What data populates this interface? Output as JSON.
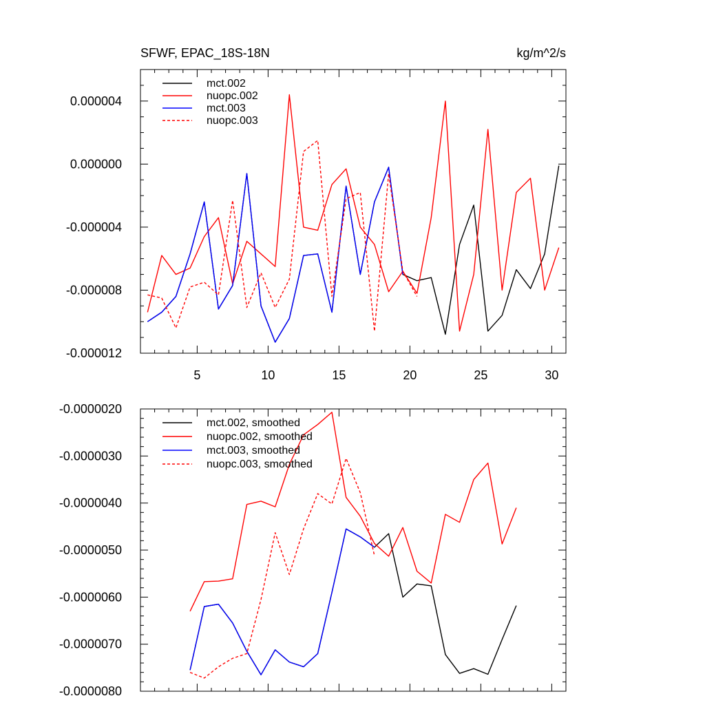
{
  "chart_data": [
    {
      "type": "line",
      "title": "SFWF, EPAC_18S-18N",
      "units": "kg/m^2/s",
      "xlabel": "",
      "ylabel": "",
      "xlim": [
        1,
        31
      ],
      "ylim": [
        -1.2e-05,
        6e-06
      ],
      "x_ticks": [
        5,
        10,
        15,
        20,
        25,
        30
      ],
      "x_tick_labels": [
        "5",
        "10",
        "15",
        "20",
        "25",
        "30"
      ],
      "y_ticks": [
        4e-06,
        0.0,
        -4e-06,
        -8e-06,
        -1.2e-05
      ],
      "y_tick_labels": [
        "0.000004",
        "0.000000",
        "-0.000004",
        "-0.000008",
        "-0.000012"
      ],
      "x_minor_step": 1,
      "y_minor_step": 1e-06,
      "legend_position": "top-left",
      "series": [
        {
          "name": "mct.002",
          "color": "#000000",
          "dash": "solid",
          "x": [
            1.5,
            2.5,
            3.5,
            4.5,
            5.5,
            6.5,
            7.5,
            8.5,
            9.5,
            10.5,
            11.5,
            12.5,
            13.5,
            14.5,
            15.5,
            16.5,
            17.5,
            18.5,
            19.5,
            20.5,
            21.5,
            22.5,
            23.5,
            24.5,
            25.5,
            26.5,
            27.5,
            28.5,
            29.5,
            30.5
          ],
          "values": [
            -1e-05,
            -9.4e-06,
            -8.4e-06,
            -5.7e-06,
            -2.4e-06,
            -9.2e-06,
            -7.7e-06,
            -6e-07,
            -9e-06,
            -1.13e-05,
            -9.8e-06,
            -5.8e-06,
            -5.7e-06,
            -9.4e-06,
            -1.4e-06,
            -7e-06,
            -2.4e-06,
            -2e-07,
            -7e-06,
            -7.4e-06,
            -7.2e-06,
            -1.08e-05,
            -5.1e-06,
            -2.6e-06,
            -1.06e-05,
            -9.6e-06,
            -6.7e-06,
            -7.9e-06,
            -5.7e-06,
            -1e-07
          ]
        },
        {
          "name": "nuopc.002",
          "color": "#ff0000",
          "dash": "solid",
          "x": [
            1.5,
            2.5,
            3.5,
            4.5,
            5.5,
            6.5,
            7.5,
            8.5,
            9.5,
            10.5,
            11.5,
            12.5,
            13.5,
            14.5,
            15.5,
            16.5,
            17.5,
            18.5,
            19.5,
            20.5,
            21.5,
            22.5,
            23.5,
            24.5,
            25.5,
            26.5,
            27.5,
            28.5,
            29.5,
            30.5
          ],
          "values": [
            -9.4e-06,
            -5.8e-06,
            -7e-06,
            -6.6e-06,
            -4.6e-06,
            -3.4e-06,
            -7.6e-06,
            -4.9e-06,
            -5.7e-06,
            -6.5e-06,
            4.4e-06,
            -4e-06,
            -4.2e-06,
            -1.3e-06,
            -3e-07,
            -4e-06,
            -5.1e-06,
            -8.1e-06,
            -6.8e-06,
            -8.2e-06,
            -3.4e-06,
            4e-06,
            -1.06e-05,
            -7e-06,
            2.2e-06,
            -8e-06,
            -1.8e-06,
            -9e-07,
            -8e-06,
            -5.3e-06
          ]
        },
        {
          "name": "mct.003",
          "color": "#0000ff",
          "dash": "solid",
          "x": [
            1.5,
            2.5,
            3.5,
            4.5,
            5.5,
            6.5,
            7.5,
            8.5,
            9.5,
            10.5,
            11.5,
            12.5,
            13.5,
            14.5,
            15.5,
            16.5,
            17.5,
            18.5,
            19.5
          ],
          "values": [
            -1e-05,
            -9.4e-06,
            -8.4e-06,
            -5.7e-06,
            -2.4e-06,
            -9.2e-06,
            -7.7e-06,
            -6e-07,
            -9e-06,
            -1.13e-05,
            -9.8e-06,
            -5.8e-06,
            -5.7e-06,
            -9.4e-06,
            -1.4e-06,
            -7e-06,
            -2.4e-06,
            -2e-07,
            -7e-06
          ]
        },
        {
          "name": "nuopc.003",
          "color": "#ff0000",
          "dash": "dashed",
          "x": [
            1.5,
            2.5,
            3.5,
            4.5,
            5.5,
            6.5,
            7.5,
            8.5,
            9.5,
            10.5,
            11.5,
            12.5,
            13.5,
            14.5,
            15.5,
            16.5,
            17.5,
            18.5,
            19.5,
            20.5
          ],
          "values": [
            -8.3e-06,
            -8.5e-06,
            -1.04e-05,
            -7.8e-06,
            -7.5e-06,
            -8.3e-06,
            -2.3e-06,
            -9.1e-06,
            -6.9e-06,
            -9.1e-06,
            -7.3e-06,
            8e-07,
            1.5e-06,
            -8.4e-06,
            -2.2e-06,
            -1.8e-06,
            -1.06e-05,
            -6e-07,
            -6.8e-06,
            -8.4e-06
          ]
        }
      ]
    },
    {
      "type": "line",
      "title": "",
      "xlabel": "",
      "ylabel": "",
      "xlim": [
        1,
        31
      ],
      "ylim": [
        -8e-06,
        -2e-06
      ],
      "x_ticks": [
        5,
        10,
        15,
        20,
        25,
        30
      ],
      "x_tick_labels": [],
      "y_ticks": [
        -2e-06,
        -3e-06,
        -4e-06,
        -5e-06,
        -6e-06,
        -7e-06,
        -8e-06
      ],
      "y_tick_labels": [
        "-0.0000020",
        "-0.0000030",
        "-0.0000040",
        "-0.0000050",
        "-0.0000060",
        "-0.0000070",
        "-0.0000080"
      ],
      "x_minor_step": 1,
      "y_minor_step": 2e-07,
      "legend_position": "top-left",
      "series": [
        {
          "name": "mct.002, smoothed",
          "color": "#000000",
          "dash": "solid",
          "x": [
            4.5,
            5.5,
            6.5,
            7.5,
            8.5,
            9.5,
            10.5,
            11.5,
            12.5,
            13.5,
            14.5,
            15.5,
            16.5,
            17.5,
            18.5,
            19.5,
            20.5,
            21.5,
            22.5,
            23.5,
            24.5,
            25.5,
            26.5,
            27.5
          ],
          "values": [
            -7.55e-06,
            -6.2e-06,
            -6.15e-06,
            -6.55e-06,
            -7.15e-06,
            -7.65e-06,
            -7.12e-06,
            -7.38e-06,
            -7.48e-06,
            -7.2e-06,
            -5.9e-06,
            -4.55e-06,
            -4.72e-06,
            -4.94e-06,
            -4.65e-06,
            -6e-06,
            -5.72e-06,
            -5.76e-06,
            -7.22e-06,
            -7.62e-06,
            -7.52e-06,
            -7.64e-06,
            -6.9e-06,
            -6.18e-06
          ]
        },
        {
          "name": "nuopc.002, smoothed",
          "color": "#ff0000",
          "dash": "solid",
          "x": [
            4.5,
            5.5,
            6.5,
            7.5,
            8.5,
            9.5,
            10.5,
            11.5,
            12.5,
            13.5,
            14.5,
            15.5,
            16.5,
            17.5,
            18.5,
            19.5,
            20.5,
            21.5,
            22.5,
            23.5,
            24.5,
            25.5,
            26.5,
            27.5
          ],
          "values": [
            -6.3e-06,
            -5.67e-06,
            -5.66e-06,
            -5.61e-06,
            -4.03e-06,
            -3.96e-06,
            -4.08e-06,
            -3.18e-06,
            -2.55e-06,
            -2.33e-06,
            -2.07e-06,
            -3.88e-06,
            -4.28e-06,
            -4.86e-06,
            -5.13e-06,
            -4.52e-06,
            -5.45e-06,
            -5.7e-06,
            -4.24e-06,
            -4.41e-06,
            -3.5e-06,
            -3.15e-06,
            -4.87e-06,
            -4.1e-06
          ]
        },
        {
          "name": "mct.003, smoothed",
          "color": "#0000ff",
          "dash": "solid",
          "x": [
            4.5,
            5.5,
            6.5,
            7.5,
            8.5,
            9.5,
            10.5,
            11.5,
            12.5,
            13.5,
            14.5,
            15.5,
            16.5,
            17.5
          ],
          "values": [
            -7.55e-06,
            -6.2e-06,
            -6.15e-06,
            -6.55e-06,
            -7.15e-06,
            -7.65e-06,
            -7.12e-06,
            -7.38e-06,
            -7.48e-06,
            -7.2e-06,
            -5.9e-06,
            -4.55e-06,
            -4.72e-06,
            -4.94e-06
          ]
        },
        {
          "name": "nuopc.003, smoothed",
          "color": "#ff0000",
          "dash": "dashed",
          "x": [
            4.5,
            5.5,
            6.5,
            7.5,
            8.5,
            9.5,
            10.5,
            11.5,
            12.5,
            13.5,
            14.5,
            15.5,
            16.5,
            17.5
          ],
          "values": [
            -7.6e-06,
            -7.72e-06,
            -7.48e-06,
            -7.3e-06,
            -7.2e-06,
            -6.05e-06,
            -4.63e-06,
            -5.52e-06,
            -4.55e-06,
            -3.8e-06,
            -4.02e-06,
            -3.05e-06,
            -3.78e-06,
            -5.12e-06
          ]
        }
      ]
    }
  ]
}
